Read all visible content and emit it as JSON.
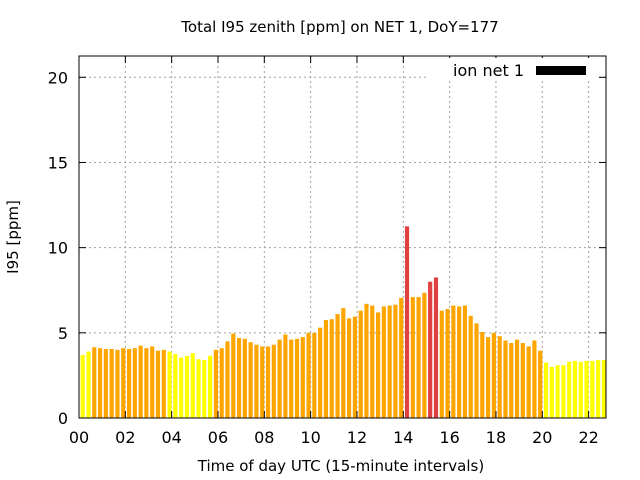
{
  "chart_data": {
    "type": "bar",
    "title": "Total I95 zenith [ppm] on NET 1, DoY=177",
    "xlabel": "Time of day UTC (15-minute intervals)",
    "ylabel": "I95 [ppm]",
    "xlim": [
      0,
      22.75
    ],
    "ylim": [
      0,
      21.25
    ],
    "x_ticks": [
      "00",
      "02",
      "04",
      "06",
      "08",
      "10",
      "12",
      "14",
      "16",
      "18",
      "20",
      "22"
    ],
    "y_ticks": [
      "0",
      "5",
      "10",
      "15",
      "20"
    ],
    "grid": true,
    "legend": {
      "placement": "top-right",
      "label": "ion net 1",
      "color": "#000000"
    },
    "bar_width_hours": 0.18,
    "colors": {
      "low": "#ffff00",
      "mid": "#ffa500",
      "high": "#e04040"
    },
    "thresholds": {
      "mid": 3.95,
      "high": 7.5
    },
    "x_hours": [
      0.25,
      0.5,
      0.75,
      1,
      1.25,
      1.5,
      1.75,
      2,
      2.25,
      2.5,
      2.75,
      3,
      3.25,
      3.5,
      3.75,
      4,
      4.25,
      4.5,
      4.75,
      5,
      5.25,
      5.5,
      5.75,
      6,
      6.25,
      6.5,
      6.75,
      7,
      7.25,
      7.5,
      7.75,
      8,
      8.25,
      8.5,
      8.75,
      9,
      9.25,
      9.5,
      9.75,
      10,
      10.25,
      10.5,
      10.75,
      11,
      11.25,
      11.5,
      11.75,
      12,
      12.25,
      12.5,
      12.75,
      13,
      13.25,
      13.5,
      13.75,
      14,
      14.25,
      14.5,
      14.75,
      15,
      15.25,
      15.5,
      15.75,
      16,
      16.25,
      16.5,
      16.75,
      17,
      17.25,
      17.5,
      17.75,
      18,
      18.25,
      18.5,
      18.75,
      19,
      19.25,
      19.5,
      19.75,
      20,
      20.25,
      20.5,
      20.75,
      21,
      21.25,
      21.5,
      21.75,
      22,
      22.25,
      22.5,
      22.75
    ],
    "values": [
      3.7,
      3.9,
      4.15,
      4.1,
      4.05,
      4.05,
      4.0,
      4.1,
      4.05,
      4.1,
      4.25,
      4.1,
      4.2,
      3.95,
      4.0,
      3.9,
      3.75,
      3.55,
      3.65,
      3.8,
      3.45,
      3.4,
      3.65,
      4.0,
      4.1,
      4.5,
      4.95,
      4.7,
      4.65,
      4.45,
      4.3,
      4.2,
      4.2,
      4.3,
      4.6,
      4.9,
      4.6,
      4.65,
      4.75,
      5.0,
      5.0,
      5.3,
      5.75,
      5.8,
      6.1,
      6.45,
      5.85,
      5.95,
      6.3,
      6.7,
      6.6,
      6.2,
      6.55,
      6.6,
      6.65,
      7.05,
      11.25,
      7.1,
      7.1,
      7.35,
      8.0,
      8.25,
      6.3,
      6.4,
      6.6,
      6.55,
      6.6,
      6.0,
      5.55,
      5.05,
      4.75,
      5.0,
      4.8,
      4.55,
      4.4,
      4.6,
      4.4,
      4.2,
      4.55,
      3.95,
      3.25,
      3.0,
      3.1,
      3.1,
      3.3,
      3.35,
      3.3,
      3.35,
      3.35,
      3.4,
      3.4
    ]
  }
}
